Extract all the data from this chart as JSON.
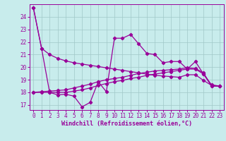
{
  "xlabel": "Windchill (Refroidissement éolien,°C)",
  "background_color": "#c8ecec",
  "grid_color": "#a0c8c8",
  "line_color": "#990099",
  "xlim": [
    -0.5,
    23.5
  ],
  "ylim": [
    16.6,
    25.0
  ],
  "xticks": [
    0,
    1,
    2,
    3,
    4,
    5,
    6,
    7,
    8,
    9,
    10,
    11,
    12,
    13,
    14,
    15,
    16,
    17,
    18,
    19,
    20,
    21,
    22,
    23
  ],
  "yticks": [
    17,
    18,
    19,
    20,
    21,
    22,
    23,
    24
  ],
  "line1_y": [
    24.7,
    21.5,
    21.0,
    20.7,
    20.5,
    20.35,
    20.25,
    20.15,
    20.05,
    19.95,
    19.85,
    19.75,
    19.65,
    19.55,
    19.45,
    19.35,
    19.3,
    19.25,
    19.2,
    19.4,
    19.4,
    18.95,
    18.55,
    18.5
  ],
  "line2_y": [
    24.7,
    21.5,
    18.0,
    17.8,
    17.85,
    17.7,
    16.85,
    17.2,
    18.85,
    18.05,
    22.3,
    22.3,
    22.6,
    21.85,
    21.1,
    21.0,
    20.35,
    20.45,
    20.45,
    19.85,
    20.45,
    19.45,
    18.6,
    18.5
  ],
  "line3_y": [
    18.0,
    18.05,
    18.1,
    18.15,
    18.2,
    18.35,
    18.5,
    18.65,
    18.85,
    19.0,
    19.1,
    19.2,
    19.35,
    19.5,
    19.6,
    19.7,
    19.75,
    19.8,
    19.85,
    19.95,
    19.9,
    19.55,
    18.5,
    18.5
  ],
  "line4_y": [
    18.0,
    18.0,
    18.0,
    18.0,
    18.0,
    18.1,
    18.2,
    18.35,
    18.55,
    18.7,
    18.85,
    18.95,
    19.1,
    19.2,
    19.35,
    19.45,
    19.55,
    19.65,
    19.75,
    19.85,
    19.85,
    19.45,
    18.5,
    18.5
  ]
}
